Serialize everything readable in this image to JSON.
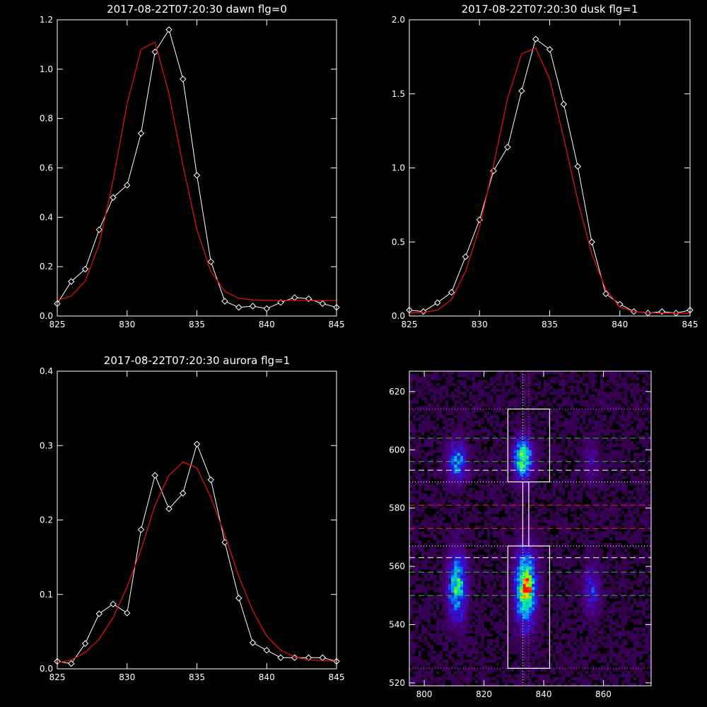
{
  "colors": {
    "background": "#000000",
    "axes": "#ffffff",
    "data": "#ffffff",
    "fit": "#e01010",
    "marker_line_white": "#ffffff",
    "marker_line_green": "#20c020",
    "marker_line_red": "#d02020",
    "marker_line_magenta": "#ff40ff"
  },
  "chart_data": [
    {
      "type": "line",
      "title": "2017-08-22T07:20:30 dawn flg=0",
      "xlim": [
        825,
        845
      ],
      "ylim": [
        0,
        1.2
      ],
      "xticks": [
        "825",
        "830",
        "835",
        "840",
        "845"
      ],
      "yticks": [
        "0.0",
        "0.2",
        "0.4",
        "0.6",
        "0.8",
        "1.0",
        "1.2"
      ],
      "grid": false,
      "series": [
        {
          "style": "data",
          "x": [
            825,
            826,
            827,
            828,
            829,
            830,
            831,
            832,
            833,
            834,
            835,
            836,
            837,
            838,
            839,
            840,
            841,
            842,
            843,
            844,
            845
          ],
          "y": [
            0.05,
            0.14,
            0.19,
            0.35,
            0.48,
            0.53,
            0.74,
            1.07,
            1.16,
            0.96,
            0.57,
            0.22,
            0.06,
            0.035,
            0.04,
            0.03,
            0.055,
            0.075,
            0.07,
            0.05,
            0.035
          ]
        },
        {
          "style": "fit",
          "x": [
            825,
            826,
            827,
            828,
            829,
            830,
            831,
            832,
            833,
            834,
            835,
            836,
            837,
            838,
            839,
            840,
            841,
            842,
            843,
            844,
            845
          ],
          "y": [
            0.063,
            0.081,
            0.142,
            0.29,
            0.55,
            0.86,
            1.08,
            1.11,
            0.9,
            0.61,
            0.35,
            0.18,
            0.1,
            0.072,
            0.065,
            0.064,
            0.063,
            0.063,
            0.063,
            0.063,
            0.063
          ]
        }
      ]
    },
    {
      "type": "line",
      "title": "2017-08-22T07:20:30 dusk flg=1",
      "xlim": [
        825,
        845
      ],
      "ylim": [
        0,
        2.0
      ],
      "xticks": [
        "825",
        "830",
        "835",
        "840",
        "845"
      ],
      "yticks": [
        "0.0",
        "0.5",
        "1.0",
        "1.5",
        "2.0"
      ],
      "grid": false,
      "series": [
        {
          "style": "data",
          "x": [
            825,
            826,
            827,
            828,
            829,
            830,
            831,
            832,
            833,
            834,
            835,
            836,
            837,
            838,
            839,
            840,
            841,
            842,
            843,
            844,
            845
          ],
          "y": [
            0.04,
            0.03,
            0.09,
            0.16,
            0.4,
            0.65,
            0.98,
            1.14,
            1.52,
            1.87,
            1.8,
            1.43,
            1.01,
            0.5,
            0.15,
            0.08,
            0.03,
            0.02,
            0.03,
            0.02,
            0.04
          ]
        },
        {
          "style": "fit",
          "x": [
            825,
            826,
            827,
            828,
            829,
            830,
            831,
            832,
            833,
            834,
            835,
            836,
            837,
            838,
            839,
            840,
            841,
            842,
            843,
            844,
            845
          ],
          "y": [
            0.02,
            0.025,
            0.04,
            0.11,
            0.3,
            0.6,
            1.02,
            1.47,
            1.77,
            1.81,
            1.6,
            1.2,
            0.78,
            0.42,
            0.18,
            0.06,
            0.03,
            0.022,
            0.02,
            0.02,
            0.02
          ]
        }
      ]
    },
    {
      "type": "line",
      "title": "2017-08-22T07:20:30 aurora flg=1",
      "xlim": [
        825,
        845
      ],
      "ylim": [
        0,
        0.4
      ],
      "xticks": [
        "825",
        "830",
        "835",
        "840",
        "845"
      ],
      "yticks": [
        "0.0",
        "0.1",
        "0.2",
        "0.3",
        "0.4"
      ],
      "grid": false,
      "series": [
        {
          "style": "data",
          "x": [
            825,
            826,
            827,
            828,
            829,
            830,
            831,
            832,
            833,
            834,
            835,
            836,
            837,
            838,
            839,
            840,
            841,
            842,
            843,
            844,
            845
          ],
          "y": [
            0.01,
            0.007,
            0.034,
            0.074,
            0.087,
            0.075,
            0.187,
            0.26,
            0.215,
            0.236,
            0.302,
            0.254,
            0.17,
            0.095,
            0.035,
            0.025,
            0.015,
            0.015,
            0.015,
            0.015,
            0.01
          ]
        },
        {
          "style": "fit",
          "x": [
            825,
            826,
            827,
            828,
            829,
            830,
            831,
            832,
            833,
            834,
            835,
            836,
            837,
            838,
            839,
            840,
            841,
            842,
            843,
            844,
            845
          ],
          "y": [
            0.008,
            0.012,
            0.022,
            0.04,
            0.069,
            0.11,
            0.16,
            0.22,
            0.26,
            0.278,
            0.27,
            0.23,
            0.18,
            0.124,
            0.078,
            0.044,
            0.025,
            0.016,
            0.012,
            0.011,
            0.01
          ]
        }
      ]
    },
    {
      "type": "heatmap",
      "xlim": [
        795,
        876
      ],
      "ylim": [
        519,
        627
      ],
      "xticks": [
        "800",
        "820",
        "840",
        "860"
      ],
      "yticks": [
        "520",
        "540",
        "560",
        "580",
        "600",
        "620"
      ],
      "colormap": "rainbow",
      "blobs": [
        {
          "x": 811,
          "y": 596,
          "sx": 2.2,
          "sy": 5,
          "amp": 0.42
        },
        {
          "x": 811,
          "y": 553,
          "sx": 2.2,
          "sy": 8,
          "amp": 0.55
        },
        {
          "x": 833,
          "y": 597,
          "sx": 2.3,
          "sy": 5,
          "amp": 0.62
        },
        {
          "x": 834,
          "y": 553,
          "sx": 2.5,
          "sy": 9,
          "amp": 0.72
        },
        {
          "x": 856,
          "y": 552,
          "sx": 2,
          "sy": 6,
          "amp": 0.28
        },
        {
          "x": 856,
          "y": 596,
          "sx": 2,
          "sy": 5,
          "amp": 0.16
        },
        {
          "x": 834,
          "y": 552,
          "sx": 1,
          "sy": 1,
          "amp": 0.5
        }
      ],
      "boxes": [
        {
          "x": [
            828,
            842
          ],
          "y": [
            589,
            614
          ]
        },
        {
          "x": [
            828,
            842
          ],
          "y": [
            525,
            567
          ]
        },
        {
          "x": [
            833,
            835
          ],
          "y": [
            567,
            589
          ]
        }
      ],
      "hlines": [
        {
          "y": 614,
          "color": "magenta",
          "dash": "dotted"
        },
        {
          "y": 604,
          "color": "green",
          "dash": "dashed"
        },
        {
          "y": 596,
          "color": "green",
          "dash": "dashed"
        },
        {
          "y": 593,
          "color": "white",
          "dash": "dashed"
        },
        {
          "y": 589,
          "color": "white",
          "dash": "dotted"
        },
        {
          "y": 581,
          "color": "red",
          "dash": "dashed"
        },
        {
          "y": 573,
          "color": "red",
          "dash": "dashed"
        },
        {
          "y": 567,
          "color": "white",
          "dash": "dotted"
        },
        {
          "y": 563,
          "color": "white",
          "dash": "dashed"
        },
        {
          "y": 558,
          "color": "green",
          "dash": "dashed"
        },
        {
          "y": 550,
          "color": "green",
          "dash": "dashed"
        },
        {
          "y": 525,
          "color": "magenta",
          "dash": "dotted"
        }
      ],
      "vlines": [
        {
          "x": 833,
          "color": "white",
          "dash": "dotted"
        },
        {
          "x": 835,
          "color": "magenta",
          "dash": "dotted"
        }
      ]
    }
  ]
}
